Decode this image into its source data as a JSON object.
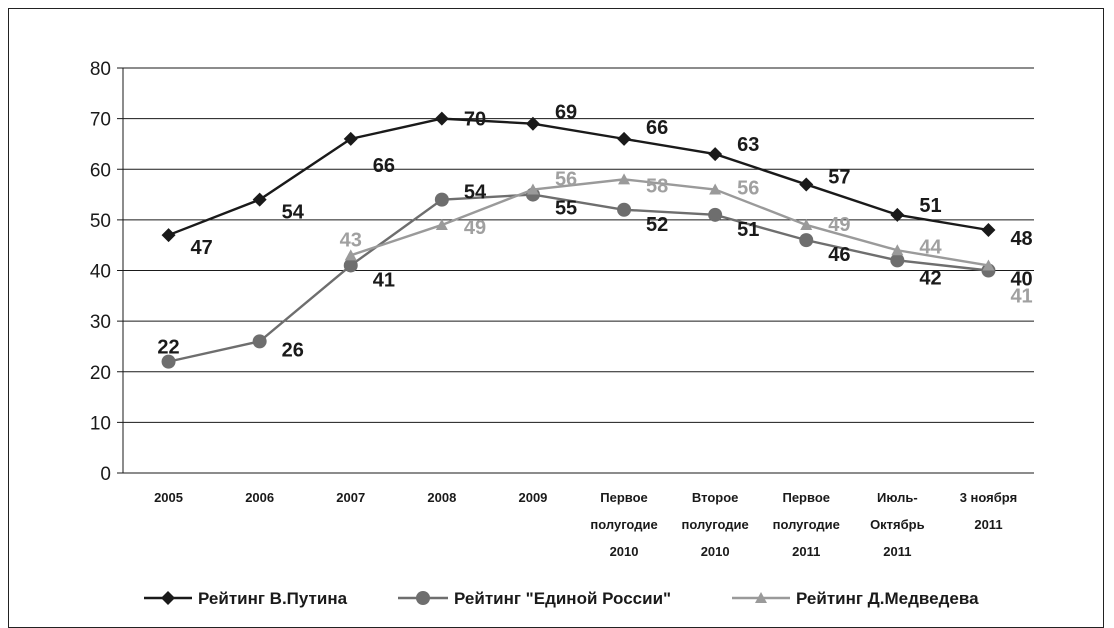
{
  "chart_data": {
    "type": "line",
    "categories": [
      [
        "2005"
      ],
      [
        "2006"
      ],
      [
        "2007"
      ],
      [
        "2008"
      ],
      [
        "2009"
      ],
      [
        "Первое",
        "полугодие",
        "2010"
      ],
      [
        "Второе",
        "полугодие",
        "2010"
      ],
      [
        "Первое",
        "полугодие",
        "2011"
      ],
      [
        "Июль-",
        "Октябрь",
        "2011"
      ],
      [
        "3 ноября",
        "2011"
      ]
    ],
    "ylim": [
      0,
      80
    ],
    "yticks": [
      0,
      10,
      20,
      30,
      40,
      50,
      60,
      70,
      80
    ],
    "grid": true,
    "legend_position": "bottom",
    "series": [
      {
        "name": "Рейтинг В.Путина",
        "marker": "diamond",
        "color": "#1a1a1a",
        "values": [
          47,
          54,
          66,
          70,
          69,
          66,
          63,
          57,
          51,
          48
        ],
        "labels": [
          "47",
          "54",
          "66",
          "70",
          "69",
          "66",
          "63",
          "57",
          "51",
          "48"
        ]
      },
      {
        "name": "Рейтинг \"Единой России\"",
        "marker": "circle",
        "color": "#6e6e6e",
        "label_color": "#1a1a1a",
        "values": [
          22,
          26,
          41,
          54,
          55,
          52,
          51,
          46,
          42,
          40
        ],
        "labels": [
          "22",
          "26",
          "41",
          "54",
          "55",
          "52",
          "51",
          "46",
          "42",
          "40"
        ]
      },
      {
        "name": "Рейтинг Д.Медведева",
        "marker": "triangle",
        "color": "#9a9a9a",
        "label_color": "#a0a0a0",
        "values": [
          null,
          null,
          43,
          49,
          56,
          58,
          56,
          49,
          44,
          41
        ],
        "labels": [
          null,
          null,
          "43",
          "49",
          "56",
          "58",
          "56",
          "49",
          "44",
          "41"
        ]
      }
    ]
  }
}
